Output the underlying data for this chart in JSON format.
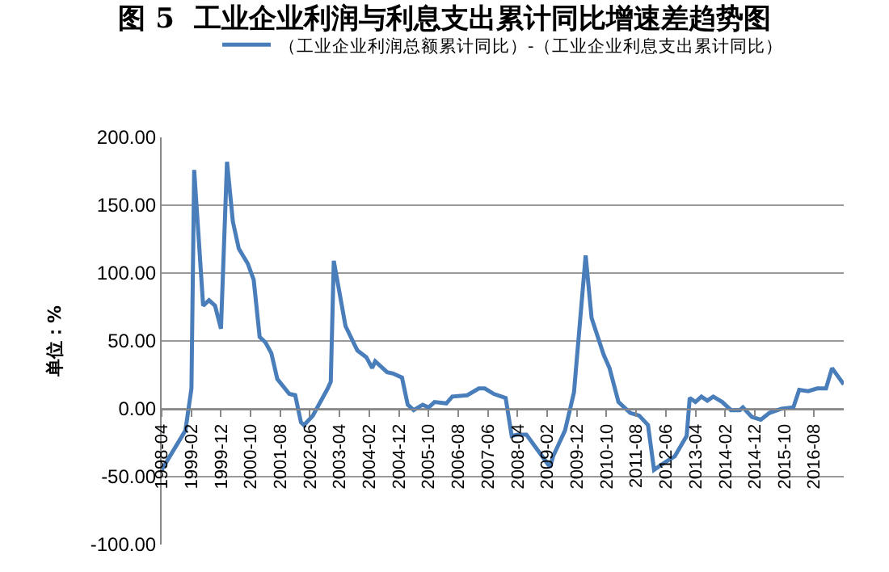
{
  "chart_data": {
    "type": "line",
    "title": "图 5  工业企业利润与利息支出累计同比增速差趋势图",
    "ylabel": "单位：%",
    "x": [
      "1998-04",
      "1998-12",
      "1999-02",
      "1999-03",
      "1999-06",
      "1999-08",
      "1999-10",
      "1999-12",
      "2000-02",
      "2000-04",
      "2000-06",
      "2000-09",
      "2000-11",
      "2001-01",
      "2001-03",
      "2001-05",
      "2001-07",
      "2001-11",
      "2002-01",
      "2002-03",
      "2002-04",
      "2002-07",
      "2002-12",
      "2003-01",
      "2003-02",
      "2003-06",
      "2003-10",
      "2004-01",
      "2004-03",
      "2004-04",
      "2004-08",
      "2004-10",
      "2005-01",
      "2005-03",
      "2005-05",
      "2005-08",
      "2005-10",
      "2005-12",
      "2006-04",
      "2006-06",
      "2006-11",
      "2007-03",
      "2007-05",
      "2007-08",
      "2007-12",
      "2008-02",
      "2008-04",
      "2008-07",
      "2009-03",
      "2009-04",
      "2009-08",
      "2009-11",
      "2010-03",
      "2010-05",
      "2010-09",
      "2010-11",
      "2011-02",
      "2011-06",
      "2011-09",
      "2011-12",
      "2012-02",
      "2012-06",
      "2012-09",
      "2013-01",
      "2013-02",
      "2013-04",
      "2013-06",
      "2013-08",
      "2013-10",
      "2014-01",
      "2014-04",
      "2014-07",
      "2014-08",
      "2014-11",
      "2015-02",
      "2015-05",
      "2015-09",
      "2016-01",
      "2016-03",
      "2016-06",
      "2016-09",
      "2016-12",
      "2017-02",
      "2017-06"
    ],
    "series": [
      {
        "name": "（工业企业利润总额累计同比）-（工业企业利息支出累计同比）",
        "color": "#4a7ebb",
        "values": [
          -45,
          -16,
          15,
          176,
          76,
          80,
          76,
          59,
          182,
          138,
          118,
          107,
          95,
          53,
          49,
          41,
          22,
          11,
          10,
          -10,
          -12,
          -5,
          15,
          20,
          109,
          61,
          43,
          38,
          30,
          35,
          27,
          26,
          23,
          3,
          -1,
          3,
          1,
          5,
          4,
          9,
          10,
          15,
          15,
          11,
          8,
          -20,
          -19,
          -19,
          -43,
          -35,
          -16,
          12,
          113,
          67,
          40,
          30,
          5,
          -3,
          -5,
          -12,
          -45,
          -39,
          -35,
          -20,
          8,
          5,
          9,
          6,
          9,
          5,
          -1,
          -1,
          1,
          -6,
          -8,
          -3,
          0,
          1,
          14,
          13,
          15,
          15,
          30,
          18
        ]
      }
    ],
    "xlim": [
      "1998-04",
      "2017-06"
    ],
    "xticks": [
      "1998-04",
      "1999-02",
      "1999-12",
      "2000-10",
      "2001-08",
      "2002-06",
      "2003-04",
      "2004-02",
      "2004-12",
      "2005-10",
      "2006-08",
      "2007-06",
      "2008-04",
      "2009-02",
      "2009-12",
      "2010-10",
      "2011-08",
      "2012-06",
      "2013-04",
      "2014-02",
      "2014-12",
      "2015-10",
      "2016-08"
    ],
    "ylim": [
      -100,
      200
    ],
    "yticks": [
      {
        "value": -100,
        "label": "-100.00"
      },
      {
        "value": -50,
        "label": "-50.00"
      },
      {
        "value": 0,
        "label": "0.00"
      },
      {
        "value": 50,
        "label": "50.00"
      },
      {
        "value": 100,
        "label": "100.00"
      },
      {
        "value": 150,
        "label": "150.00"
      },
      {
        "value": 200,
        "label": "200.00"
      }
    ],
    "grid": "y",
    "legend": "top",
    "marker": "none",
    "line_style": "solid"
  }
}
